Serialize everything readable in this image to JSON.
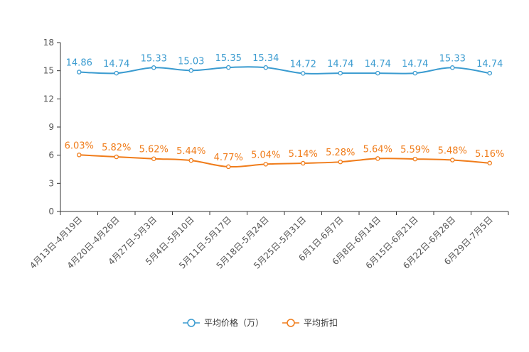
{
  "chart_data": {
    "type": "line",
    "title": "",
    "xlabel": "",
    "ylabel": "",
    "ylim": [
      0,
      18
    ],
    "yticks": [
      0,
      3,
      6,
      9,
      12,
      15,
      18
    ],
    "grid": false,
    "legend_position": "bottom-center",
    "categories": [
      "4月13日-4月19日",
      "4月20日-4月26日",
      "4月27日-5月3日",
      "5月4日-5月10日",
      "5月11日-5月17日",
      "5月18日-5月24日",
      "5月25日-5月31日",
      "6月1日-6月7日",
      "6月8日-6月14日",
      "6月15日-6月21日",
      "6月22日-6月28日",
      "6月29日-7月5日"
    ],
    "series": [
      {
        "name": "平均价格（万）",
        "color": "#3a9bd0",
        "values": [
          14.86,
          14.74,
          15.33,
          15.03,
          15.35,
          15.34,
          14.72,
          14.74,
          14.74,
          14.74,
          15.33,
          14.74
        ],
        "labels": [
          "14.86",
          "14.74",
          "15.33",
          "15.03",
          "15.35",
          "15.34",
          "14.72",
          "14.74",
          "14.74",
          "14.74",
          "15.33",
          "14.74"
        ]
      },
      {
        "name": "平均折扣",
        "color": "#f07c1a",
        "values": [
          6.03,
          5.82,
          5.62,
          5.44,
          4.77,
          5.04,
          5.14,
          5.28,
          5.64,
          5.59,
          5.48,
          5.16
        ],
        "labels": [
          "6.03%",
          "5.82%",
          "5.62%",
          "5.44%",
          "4.77%",
          "5.04%",
          "5.14%",
          "5.28%",
          "5.64%",
          "5.59%",
          "5.48%",
          "5.16%"
        ]
      }
    ]
  }
}
